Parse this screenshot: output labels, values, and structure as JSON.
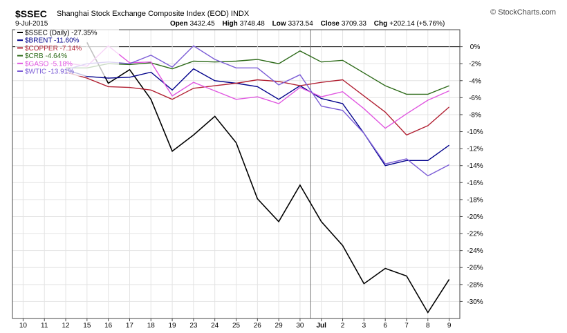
{
  "header": {
    "symbol": "$SSEC",
    "description": "Shanghai Stock Exchange Composite Index (EOD)",
    "exchange": "INDX",
    "brand": "StockCharts.com",
    "date": "9-Jul-2015",
    "open_label": "Open",
    "open": "3432.45",
    "high_label": "High",
    "high": "3748.48",
    "low_label": "Low",
    "low": "3373.54",
    "close_label": "Close",
    "close": "3709.33",
    "chg_label": "Chg",
    "chg": "+202.14 (+5.76%)"
  },
  "chart_data": {
    "type": "line",
    "categories": [
      "10",
      "11",
      "12",
      "15",
      "16",
      "17",
      "18",
      "19",
      "23",
      "24",
      "25",
      "26",
      "29",
      "30",
      "Jul",
      "2",
      "3",
      "6",
      "7",
      "8",
      "9"
    ],
    "ylim": [
      -32,
      2
    ],
    "yticks": [
      0,
      -2,
      -4,
      -6,
      -8,
      -10,
      -12,
      -14,
      -16,
      -18,
      -20,
      -22,
      -24,
      -26,
      -28,
      -30
    ],
    "ytick_labels": [
      "0%",
      "-2%",
      "-4%",
      "-6%",
      "-8%",
      "-10%",
      "-12%",
      "-14%",
      "-16%",
      "-18%",
      "-20%",
      "-22%",
      "-24%",
      "-26%",
      "-28%",
      "-30%"
    ],
    "zero_line": true,
    "grid": true,
    "legend_position": "top-left",
    "series": [
      {
        "name": "$SSEC (Daily) -27.35%",
        "color": "#000000",
        "values": [
          null,
          null,
          null,
          0.5,
          -4.3,
          -2.7,
          -6.2,
          -12.3,
          -10.4,
          -8.2,
          -11.3,
          -17.9,
          -20.6,
          -16.3,
          -20.6,
          -23.4,
          -27.9,
          -26.1,
          -27.0,
          -31.3,
          -27.4
        ]
      },
      {
        "name": "$BRENT -11.60%",
        "color": "#00008b",
        "values": [
          null,
          null,
          -2.7,
          -3.5,
          -3.7,
          -3.6,
          -3.0,
          -5.1,
          -2.6,
          -4.0,
          -4.3,
          -4.7,
          -6.2,
          -4.6,
          -6.1,
          -6.7,
          -10.2,
          -14.0,
          -13.4,
          -13.4,
          -11.6
        ]
      },
      {
        "name": "$COPPER -7.14%",
        "color": "#b22234",
        "values": [
          null,
          null,
          -3.0,
          -3.7,
          -4.7,
          -4.8,
          -5.1,
          -6.2,
          -4.9,
          -4.6,
          -4.3,
          -3.9,
          -4.1,
          -4.6,
          -4.2,
          -3.9,
          -5.8,
          -7.7,
          -10.4,
          -9.3,
          -7.1
        ]
      },
      {
        "name": "$CRB -4.64%",
        "color": "#2e6b1a",
        "values": [
          null,
          null,
          -2.5,
          -2.5,
          -2.0,
          -2.1,
          -1.9,
          -2.6,
          -1.7,
          -1.8,
          -1.7,
          -1.5,
          -2.0,
          -0.5,
          -1.8,
          -1.6,
          -3.1,
          -4.6,
          -5.6,
          -5.6,
          -4.6
        ]
      },
      {
        "name": "$GASO -5.18%",
        "color": "#e056e0",
        "values": [
          null,
          null,
          -1.9,
          -2.3,
          0.1,
          -1.9,
          -1.8,
          -5.8,
          -4.2,
          -5.2,
          -6.2,
          -5.9,
          -6.7,
          -4.8,
          -5.9,
          -5.3,
          -7.3,
          -9.6,
          -7.9,
          -6.3,
          -5.2
        ]
      },
      {
        "name": "$WTIC -13.91%",
        "color": "#7b5cd6",
        "values": [
          null,
          null,
          -2.7,
          -2.0,
          -1.8,
          -2.0,
          -1.0,
          -2.4,
          0.1,
          -1.5,
          -2.5,
          -2.5,
          -4.5,
          -3.3,
          -7.0,
          -7.5,
          -10.2,
          -13.8,
          -13.2,
          -15.2,
          -13.9
        ]
      }
    ]
  }
}
